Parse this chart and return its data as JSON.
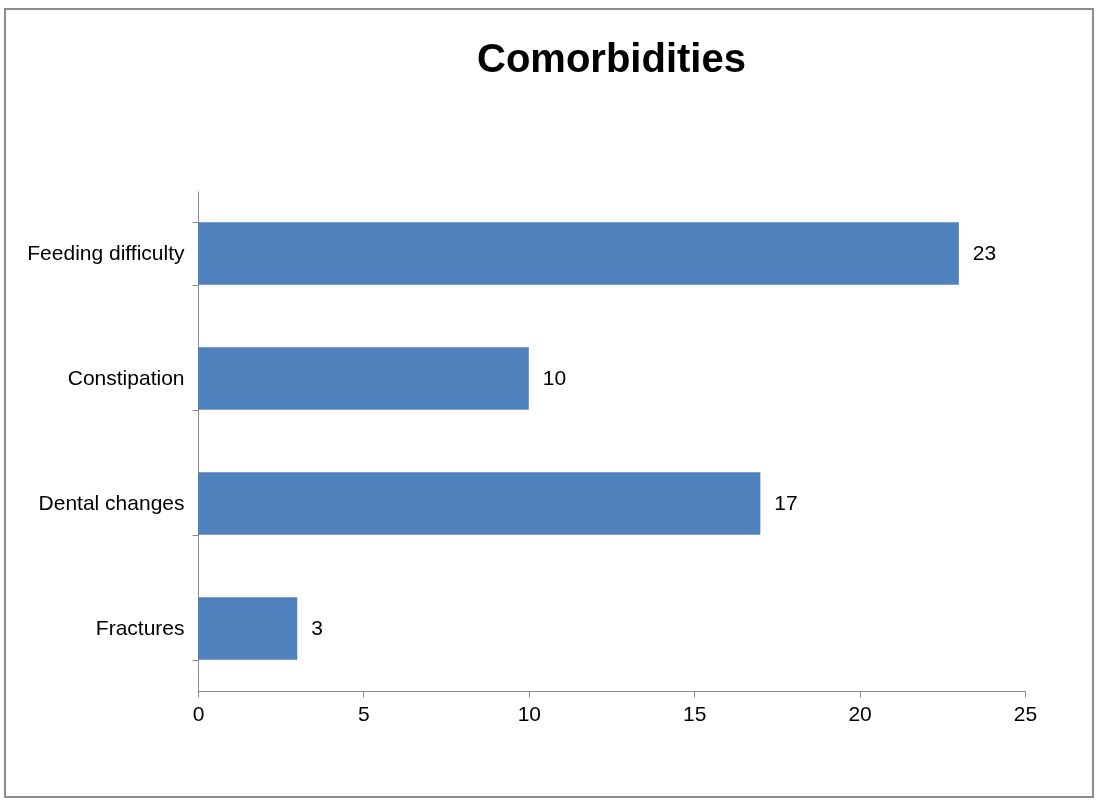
{
  "chart_data": {
    "type": "bar",
    "orientation": "horizontal",
    "title": "Comorbidities",
    "categories": [
      "Feeding difficulty",
      "Constipation",
      "Dental changes",
      "Fractures"
    ],
    "values": [
      23,
      10,
      17,
      3
    ],
    "color": "#4f81bd",
    "xlim": [
      0,
      25
    ],
    "xticks": [
      0,
      5,
      10,
      15,
      20,
      25
    ],
    "grid": false,
    "data_labels": true
  }
}
